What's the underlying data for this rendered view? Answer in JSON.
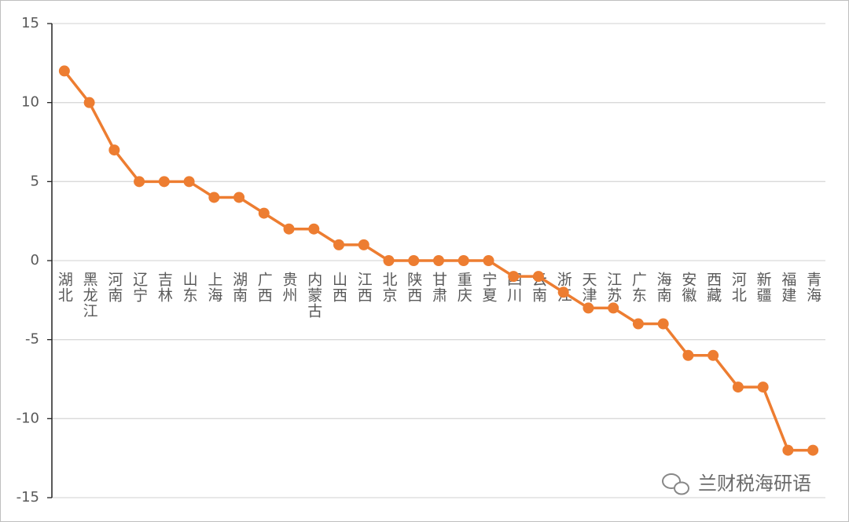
{
  "chart_data": {
    "type": "line",
    "categories": [
      "湖北",
      "黑龙江",
      "河南",
      "辽宁",
      "吉林",
      "山东",
      "上海",
      "湖南",
      "广西",
      "贵州",
      "内蒙古",
      "山西",
      "江西",
      "北京",
      "陕西",
      "甘肃",
      "重庆",
      "宁夏",
      "四川",
      "云南",
      "浙江",
      "天津",
      "江苏",
      "广东",
      "海南",
      "安徽",
      "西藏",
      "河北",
      "新疆",
      "福建",
      "青海"
    ],
    "series": [
      {
        "color": "#ed7d31",
        "values": [
          12,
          10,
          7,
          5,
          5,
          5,
          4,
          4,
          3,
          2,
          2,
          1,
          1,
          0,
          0,
          0,
          0,
          0,
          -1,
          -1,
          -2,
          -3,
          -3,
          -4,
          -4,
          -6,
          -6,
          -8,
          -8,
          -12,
          -12
        ]
      }
    ],
    "ylim": [
      -15,
      15
    ],
    "yticks": [
      -15,
      -10,
      -5,
      0,
      5,
      10,
      15
    ],
    "grid": true
  },
  "watermark": "兰财税海研语"
}
